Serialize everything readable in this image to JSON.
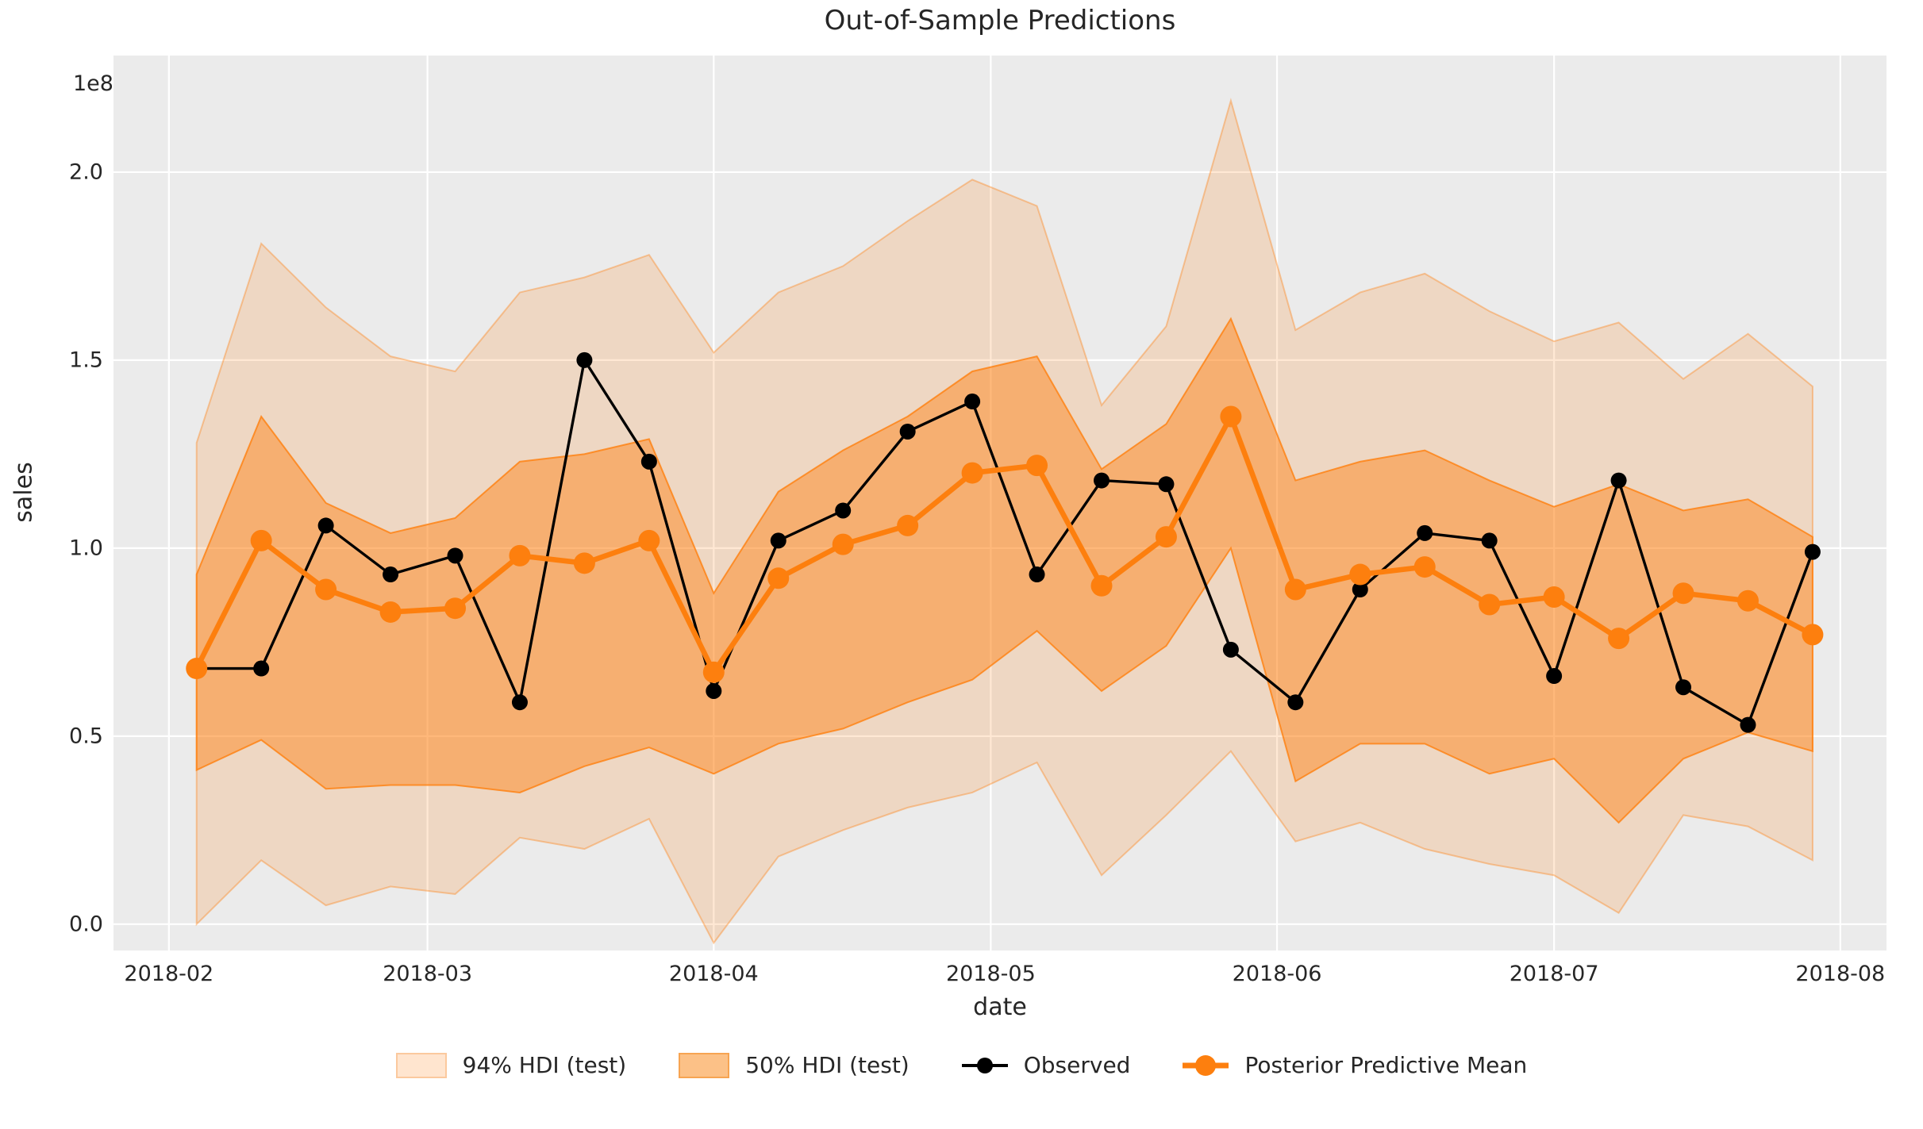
{
  "title": "Out-of-Sample Predictions",
  "axes": {
    "xlabel": "date",
    "ylabel": "sales",
    "offset_label": "1e8"
  },
  "legend": {
    "items": [
      {
        "label": "94% HDI (test)",
        "kind": "band-light"
      },
      {
        "label": "50% HDI (test)",
        "kind": "band-dark"
      },
      {
        "label": "Observed",
        "kind": "line-black"
      },
      {
        "label": "Posterior Predictive Mean",
        "kind": "line-orange"
      }
    ]
  },
  "colors": {
    "figure_bg": "#ffffff",
    "plot_bg": "#ebebeb",
    "grid": "#ffffff",
    "band_base": "#ff7f0e",
    "observed": "#000000",
    "mean": "#fd7f0e",
    "text": "#262626"
  },
  "chart_data": {
    "type": "line",
    "title": "Out-of-Sample Predictions",
    "xlabel": "date",
    "ylabel": "sales",
    "y_scale_note": "values in 1e8 units",
    "grid": true,
    "legend_position": "bottom",
    "xlim": [
      "2018-01-26",
      "2018-08-06"
    ],
    "ylim": [
      -0.07,
      2.31
    ],
    "yticks": [
      {
        "v": 0.0,
        "label": "0.0"
      },
      {
        "v": 0.5,
        "label": "0.5"
      },
      {
        "v": 1.0,
        "label": "1.0"
      },
      {
        "v": 1.5,
        "label": "1.5"
      },
      {
        "v": 2.0,
        "label": "2.0"
      }
    ],
    "xticks": [
      {
        "date": "2018-02-01",
        "label": "2018-02"
      },
      {
        "date": "2018-03-01",
        "label": "2018-03"
      },
      {
        "date": "2018-04-01",
        "label": "2018-04"
      },
      {
        "date": "2018-05-01",
        "label": "2018-05"
      },
      {
        "date": "2018-06-01",
        "label": "2018-06"
      },
      {
        "date": "2018-07-01",
        "label": "2018-07"
      },
      {
        "date": "2018-08-01",
        "label": "2018-08"
      }
    ],
    "x": [
      "2018-02-04",
      "2018-02-11",
      "2018-02-18",
      "2018-02-25",
      "2018-03-04",
      "2018-03-11",
      "2018-03-18",
      "2018-03-25",
      "2018-04-01",
      "2018-04-08",
      "2018-04-15",
      "2018-04-22",
      "2018-04-29",
      "2018-05-06",
      "2018-05-13",
      "2018-05-20",
      "2018-05-27",
      "2018-06-03",
      "2018-06-10",
      "2018-06-17",
      "2018-06-24",
      "2018-07-01",
      "2018-07-08",
      "2018-07-15",
      "2018-07-22",
      "2018-07-29"
    ],
    "series": [
      {
        "name": "Observed",
        "values": [
          0.68,
          0.68,
          1.06,
          0.93,
          0.98,
          0.59,
          1.5,
          1.23,
          0.62,
          1.02,
          1.1,
          1.31,
          1.39,
          0.93,
          1.18,
          1.17,
          0.73,
          0.59,
          0.89,
          1.04,
          1.02,
          0.66,
          1.18,
          0.63,
          0.53,
          0.99
        ]
      },
      {
        "name": "Posterior Predictive Mean",
        "values": [
          0.68,
          1.02,
          0.89,
          0.83,
          0.84,
          0.98,
          0.96,
          1.02,
          0.67,
          0.92,
          1.01,
          1.06,
          1.2,
          1.22,
          0.9,
          1.03,
          1.35,
          0.89,
          0.93,
          0.95,
          0.85,
          0.87,
          0.76,
          0.88,
          0.86,
          0.77
        ]
      }
    ],
    "bands": [
      {
        "name": "94% HDI (test)",
        "low": [
          0.0,
          0.17,
          0.05,
          0.1,
          0.08,
          0.23,
          0.2,
          0.28,
          -0.05,
          0.18,
          0.25,
          0.31,
          0.35,
          0.43,
          0.13,
          0.29,
          0.46,
          0.22,
          0.27,
          0.2,
          0.16,
          0.13,
          0.03,
          0.29,
          0.26,
          0.17
        ],
        "high": [
          1.28,
          1.81,
          1.64,
          1.51,
          1.47,
          1.68,
          1.72,
          1.78,
          1.52,
          1.68,
          1.75,
          1.87,
          1.98,
          1.91,
          1.38,
          1.59,
          2.19,
          1.58,
          1.68,
          1.73,
          1.63,
          1.55,
          1.6,
          1.45,
          1.57,
          1.43
        ]
      },
      {
        "name": "50% HDI (test)",
        "low": [
          0.41,
          0.49,
          0.36,
          0.37,
          0.37,
          0.35,
          0.42,
          0.47,
          0.4,
          0.48,
          0.52,
          0.59,
          0.65,
          0.78,
          0.62,
          0.74,
          1.0,
          0.38,
          0.48,
          0.48,
          0.4,
          0.44,
          0.27,
          0.44,
          0.51,
          0.46
        ],
        "high": [
          0.93,
          1.35,
          1.12,
          1.04,
          1.08,
          1.23,
          1.25,
          1.29,
          0.88,
          1.15,
          1.26,
          1.35,
          1.47,
          1.51,
          1.21,
          1.33,
          1.61,
          1.18,
          1.23,
          1.26,
          1.18,
          1.11,
          1.17,
          1.1,
          1.13,
          1.03
        ]
      }
    ]
  }
}
